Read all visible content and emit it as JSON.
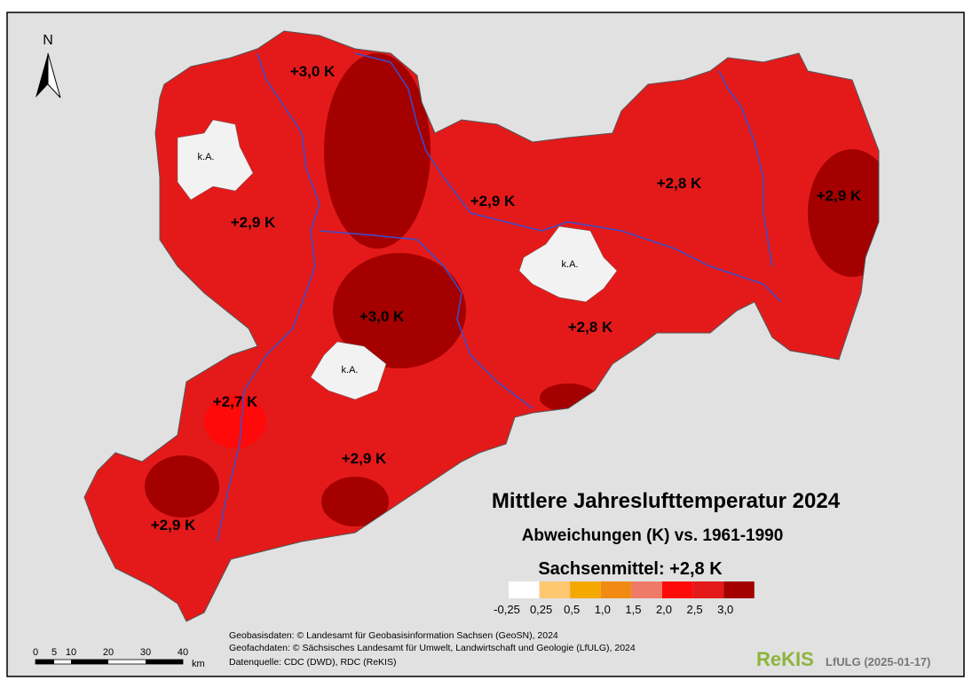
{
  "map": {
    "north": "N",
    "title": "Mittlere Jahreslufttemperatur 2024",
    "subtitle": "Abweichungen (K) vs. 1961-1990",
    "state_mean": "Sachsenmittel: +2,8 K",
    "regions": [
      "+3,0 K",
      "+2,9 K",
      "+2,9 K",
      "+2,8 K",
      "+2,9 K",
      "+3,0 K",
      "+2,8 K",
      "+2,7 K",
      "+2,9 K",
      "+2,9 K"
    ],
    "no_data": [
      "k.A.",
      "k.A.",
      "k.A."
    ],
    "legend": {
      "colors": [
        "#ffffff",
        "#fdc870",
        "#f5a800",
        "#f08a12",
        "#f07a68",
        "#ff0a0a",
        "#e41a1a",
        "#a40000"
      ],
      "labels": [
        "-0,25",
        "0,25",
        "0,5",
        "1,0",
        "1,5",
        "2,0",
        "2,5",
        "3,0"
      ]
    },
    "scale": {
      "labels": [
        "0",
        "5",
        "10",
        "20",
        "30",
        "40"
      ],
      "unit": "km"
    },
    "credits": [
      "Geobasisdaten: © Landesamt für Geobasisinformation Sachsen (GeoSN), 2024",
      "Geofachdaten: © Sächsisches Landesamt für Umwelt, Landwirtschaft und Geologie (LfULG), 2024",
      "Datenquelle: CDC (DWD), RDC (ReKIS)"
    ],
    "logo": "ReKIS",
    "logo_suffix": "LfULG (2025-01-17)"
  }
}
